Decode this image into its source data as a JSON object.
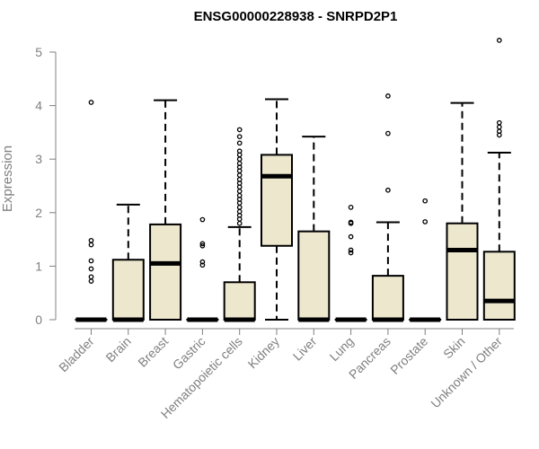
{
  "chart_data": {
    "type": "box",
    "title": "ENSG00000228938 - SNRPD2P1",
    "ylabel": "Expression",
    "xlabel": "",
    "ylim": [
      0,
      5.25
    ],
    "yticks": [
      0,
      1,
      2,
      3,
      4,
      5
    ],
    "box_fill": "#EDE7CE",
    "categories": [
      "Bladder",
      "Brain",
      "Breast",
      "Gastric",
      "Hematopoietic cells",
      "Kidney",
      "Liver",
      "Lung",
      "Pancreas",
      "Prostate",
      "Skin",
      "Unknown / Other"
    ],
    "boxes": [
      {
        "q1": 0,
        "median": 0,
        "q3": 0,
        "whisker_low": 0,
        "whisker_high": 0,
        "outliers": [
          0.72,
          0.8,
          0.95,
          1.1,
          1.4,
          1.48,
          4.06
        ]
      },
      {
        "q1": 0,
        "median": 0,
        "q3": 1.12,
        "whisker_low": 0,
        "whisker_high": 2.15,
        "outliers": []
      },
      {
        "q1": 0,
        "median": 1.05,
        "q3": 1.78,
        "whisker_low": 0,
        "whisker_high": 4.1,
        "outliers": []
      },
      {
        "q1": 0,
        "median": 0,
        "q3": 0,
        "whisker_low": 0,
        "whisker_high": 0,
        "outliers": [
          1.02,
          1.08,
          1.38,
          1.42,
          1.87
        ]
      },
      {
        "q1": 0,
        "median": 0,
        "q3": 0.7,
        "whisker_low": 0,
        "whisker_high": 1.73,
        "outliers": [
          1.8,
          1.88,
          1.95,
          2.02,
          2.1,
          2.18,
          2.25,
          2.32,
          2.4,
          2.48,
          2.55,
          2.62,
          2.7,
          2.78,
          2.85,
          2.92,
          3.0,
          3.08,
          3.15,
          3.3,
          3.42,
          3.55
        ]
      },
      {
        "q1": 1.38,
        "median": 2.68,
        "q3": 3.08,
        "whisker_low": 0,
        "whisker_high": 4.12,
        "outliers": []
      },
      {
        "q1": 0,
        "median": 0,
        "q3": 1.65,
        "whisker_low": 0,
        "whisker_high": 3.42,
        "outliers": []
      },
      {
        "q1": 0,
        "median": 0,
        "q3": 0,
        "whisker_low": 0,
        "whisker_high": 0,
        "outliers": [
          1.25,
          1.3,
          1.55,
          1.8,
          1.82,
          2.1
        ]
      },
      {
        "q1": 0,
        "median": 0,
        "q3": 0.82,
        "whisker_low": 0,
        "whisker_high": 1.82,
        "outliers": [
          2.42,
          3.48,
          4.18
        ]
      },
      {
        "q1": 0,
        "median": 0,
        "q3": 0,
        "whisker_low": 0,
        "whisker_high": 0,
        "outliers": [
          1.83,
          2.22
        ]
      },
      {
        "q1": 0,
        "median": 1.3,
        "q3": 1.8,
        "whisker_low": 0,
        "whisker_high": 4.05,
        "outliers": []
      },
      {
        "q1": 0,
        "median": 0.35,
        "q3": 1.27,
        "whisker_low": 0,
        "whisker_high": 3.12,
        "outliers": [
          3.45,
          3.52,
          3.6,
          3.68,
          5.22
        ]
      }
    ]
  }
}
